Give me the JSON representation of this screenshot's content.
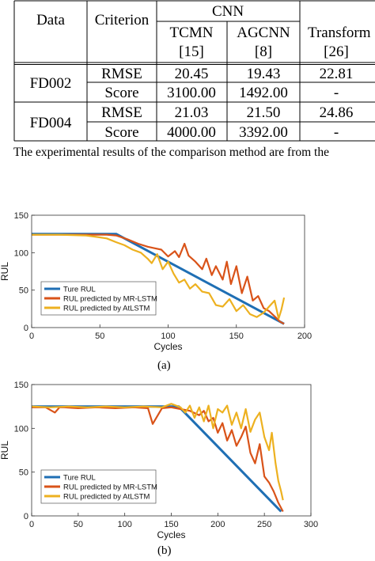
{
  "table": {
    "header_top": {
      "data": "Data",
      "criterion": "Criterion",
      "group_cnn": "CNN"
    },
    "header_sub": [
      {
        "name": "TCMN",
        "ref": "[15]"
      },
      {
        "name": "AGCNN",
        "ref": "[8]"
      },
      {
        "name": "Transform",
        "ref": "[26]"
      }
    ],
    "rows": [
      {
        "dataset": "FD002",
        "criterion": "RMSE",
        "values": [
          "20.45",
          "19.43",
          "22.81"
        ]
      },
      {
        "dataset": "",
        "criterion": "Score",
        "values": [
          "3100.00",
          "1492.00",
          "-"
        ]
      },
      {
        "dataset": "FD004",
        "criterion": "RMSE",
        "values": [
          "21.03",
          "21.50",
          "24.86"
        ]
      },
      {
        "dataset": "",
        "criterion": "Score",
        "values": [
          "4000.00",
          "3392.00",
          "-"
        ]
      }
    ]
  },
  "table_note": "The experimental results of the comparison method are from the",
  "figures": [
    {
      "sub_label": "(a)"
    },
    {
      "sub_label": "(b)"
    }
  ],
  "chart_data": [
    {
      "type": "line",
      "xlabel": "Cycles",
      "ylabel": "RUL",
      "xlim": [
        0,
        200
      ],
      "ylim": [
        0,
        150
      ],
      "xticks": [
        0,
        50,
        100,
        150,
        200
      ],
      "yticks": [
        0,
        50,
        100,
        150
      ],
      "grid": false,
      "legend_position": "bottom-left",
      "series": [
        {
          "name": "Ture RUL",
          "color": "#1f6fb4",
          "x": [
            0,
            62,
            185
          ],
          "y": [
            125,
            125,
            5
          ]
        },
        {
          "name": "RUL predicted by MR-LSTM",
          "color": "#d95319",
          "x": [
            0,
            20,
            40,
            55,
            62,
            70,
            78,
            85,
            90,
            95,
            100,
            105,
            108,
            112,
            115,
            120,
            125,
            128,
            132,
            135,
            140,
            143,
            146,
            150,
            154,
            158,
            162,
            166,
            170,
            174,
            178,
            182,
            185
          ],
          "y": [
            124,
            124,
            124,
            124,
            123,
            118,
            112,
            108,
            106,
            104,
            95,
            102,
            94,
            112,
            96,
            88,
            78,
            92,
            70,
            82,
            64,
            88,
            58,
            82,
            46,
            68,
            36,
            42,
            26,
            22,
            15,
            8,
            5
          ]
        },
        {
          "name": "RUL predicted by AtLSTM",
          "color": "#edb120",
          "x": [
            0,
            20,
            40,
            48,
            55,
            62,
            68,
            74,
            80,
            85,
            88,
            92,
            96,
            100,
            104,
            108,
            112,
            116,
            120,
            125,
            130,
            135,
            140,
            145,
            150,
            155,
            160,
            165,
            170,
            174,
            178,
            181,
            183,
            185
          ],
          "y": [
            124,
            124,
            123,
            121,
            119,
            114,
            110,
            104,
            100,
            92,
            86,
            98,
            78,
            88,
            72,
            60,
            64,
            52,
            58,
            48,
            46,
            30,
            28,
            38,
            22,
            30,
            18,
            14,
            20,
            28,
            36,
            12,
            24,
            40
          ]
        }
      ]
    },
    {
      "type": "line",
      "xlabel": "Cycles",
      "ylabel": "RUL",
      "xlim": [
        0,
        300
      ],
      "ylim": [
        0,
        150
      ],
      "xticks": [
        0,
        50,
        100,
        150,
        200,
        250,
        300
      ],
      "yticks": [
        0,
        50,
        100,
        150
      ],
      "grid": false,
      "legend_position": "bottom-left",
      "series": [
        {
          "name": "Ture RUL",
          "color": "#1f6fb4",
          "x": [
            0,
            158,
            268
          ],
          "y": [
            125,
            125,
            5
          ]
        },
        {
          "name": "RUL predicted by MR-LSTM",
          "color": "#d95319",
          "x": [
            0,
            15,
            25,
            30,
            35,
            50,
            70,
            90,
            110,
            125,
            130,
            140,
            150,
            160,
            170,
            180,
            185,
            190,
            195,
            200,
            205,
            210,
            215,
            220,
            225,
            230,
            235,
            240,
            245,
            250,
            255,
            260,
            265,
            270
          ],
          "y": [
            124,
            124,
            118,
            124,
            124,
            123,
            124,
            123,
            124,
            123,
            105,
            123,
            124,
            122,
            120,
            115,
            120,
            108,
            112,
            95,
            106,
            86,
            98,
            80,
            90,
            102,
            72,
            60,
            82,
            45,
            38,
            28,
            15,
            5
          ]
        },
        {
          "name": "RUL predicted by AtLSTM",
          "color": "#edb120",
          "x": [
            0,
            20,
            40,
            60,
            80,
            100,
            120,
            140,
            150,
            160,
            165,
            170,
            175,
            180,
            185,
            190,
            195,
            200,
            205,
            210,
            215,
            220,
            225,
            230,
            235,
            240,
            245,
            250,
            255,
            258,
            262,
            265,
            268,
            270
          ],
          "y": [
            125,
            124,
            125,
            124,
            125,
            124,
            125,
            124,
            128,
            124,
            118,
            126,
            112,
            124,
            108,
            126,
            100,
            122,
            118,
            126,
            104,
            118,
            100,
            122,
            96,
            110,
            118,
            90,
            75,
            95,
            60,
            40,
            28,
            18
          ]
        }
      ]
    }
  ]
}
